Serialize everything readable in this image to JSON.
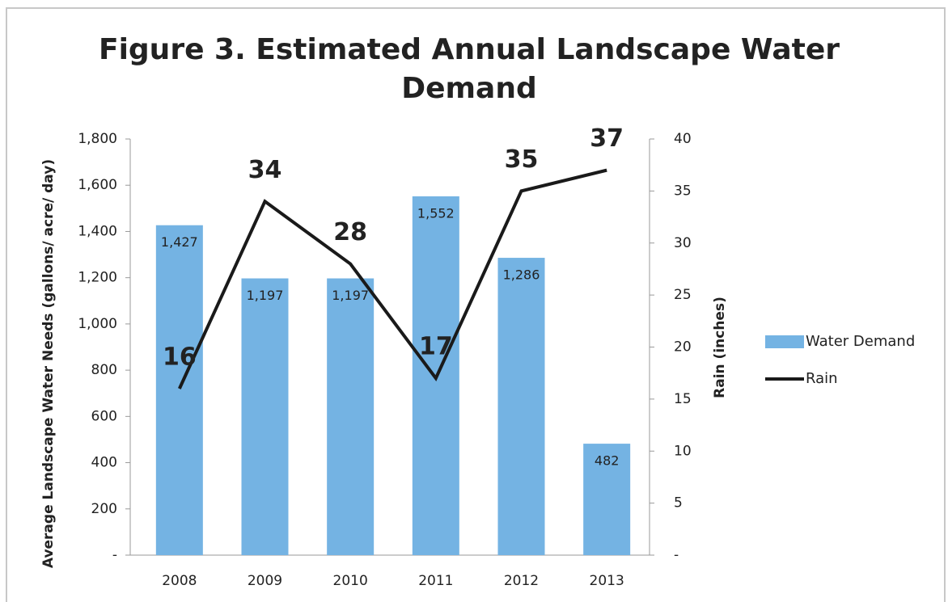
{
  "chart_data": {
    "type": "bar",
    "title": "Figure 3. Estimated Annual Landscape Water Demand",
    "y_label": "Average Landscape Water Needs (gallons/ acre/ day)",
    "y2_label": "Rain (inches)",
    "categories": [
      "2008",
      "2009",
      "2010",
      "2011",
      "2012",
      "2013"
    ],
    "series": [
      {
        "name": "Water Demand",
        "type": "bar",
        "color": "#74b3e3",
        "values": [
          1427,
          1197,
          1197,
          1552,
          1286,
          482
        ],
        "value_labels": [
          "1,427",
          "1,197",
          "1,197",
          "1,552",
          "1,286",
          "482"
        ]
      },
      {
        "name": "Rain",
        "type": "line",
        "axis": "y2",
        "color": "#1a1a1a",
        "values": [
          16,
          34,
          28,
          17,
          35,
          37
        ]
      }
    ],
    "ylim": [
      0,
      1800
    ],
    "yticks": [
      {
        "value": 0,
        "label": "-"
      },
      200,
      400,
      600,
      800,
      {
        "value": 1000,
        "label": "1,000"
      },
      {
        "value": 1200,
        "label": "1,200"
      },
      {
        "value": 1400,
        "label": "1,400"
      },
      {
        "value": 1600,
        "label": "1,600"
      },
      {
        "value": 1800,
        "label": "1,800"
      }
    ],
    "y2lim": [
      0,
      40
    ],
    "y2ticks": [
      {
        "value": 0,
        "label": "-"
      },
      5,
      10,
      15,
      20,
      25,
      30,
      35,
      40
    ],
    "legend": "right"
  }
}
